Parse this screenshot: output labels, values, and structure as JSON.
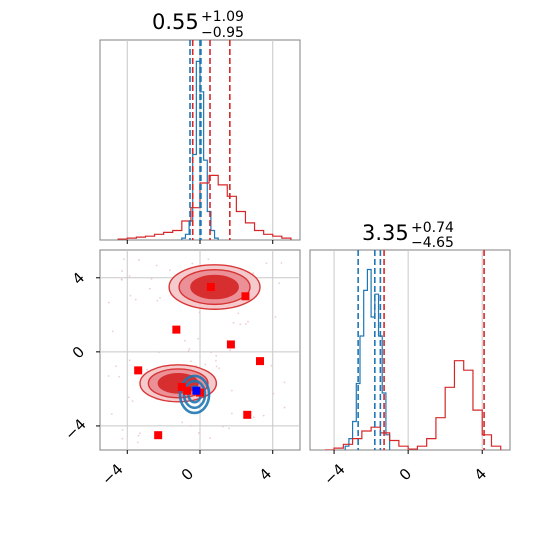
{
  "chart_data": [
    {
      "type": "histogram",
      "panel": "top-left",
      "title": {
        "median": "0.55",
        "upper": "+1.09",
        "lower": "−0.95"
      },
      "xlim": [
        -5.5,
        5.5
      ],
      "grid": true,
      "series": [
        {
          "color": "#1f77b4",
          "bin_edges": [
            -1.0,
            -0.8,
            -0.6,
            -0.4,
            -0.2,
            0.0,
            0.2,
            0.4,
            0.6,
            0.8,
            1.0
          ],
          "counts": [
            0.01,
            0.03,
            0.1,
            0.45,
            0.94,
            0.78,
            0.42,
            0.15,
            0.05,
            0.01
          ],
          "quantile_lines": [
            -0.55,
            0.0,
            0.05
          ]
        },
        {
          "color": "#d62728",
          "bin_edges": [
            -4.5,
            -4.0,
            -3.5,
            -3.0,
            -2.5,
            -2.0,
            -1.5,
            -1.0,
            -0.5,
            0.0,
            0.5,
            1.0,
            1.5,
            2.0,
            2.5,
            3.0,
            3.5,
            4.0,
            4.5,
            5.0
          ],
          "counts": [
            0.005,
            0.01,
            0.015,
            0.02,
            0.03,
            0.04,
            0.05,
            0.1,
            0.17,
            0.3,
            0.34,
            0.29,
            0.23,
            0.15,
            0.09,
            0.05,
            0.03,
            0.02,
            0.01
          ],
          "quantile_lines": [
            -0.4,
            0.55,
            1.64
          ]
        }
      ]
    },
    {
      "type": "scatter",
      "panel": "bottom-left",
      "xlim": [
        -5.5,
        5.5
      ],
      "ylim": [
        -5.3,
        5.5
      ],
      "xticks": [
        "−4",
        "0",
        "4"
      ],
      "yticks": [
        "4",
        "0",
        "−4"
      ],
      "grid": true,
      "red_contour_blobs": [
        {
          "cx": 0.8,
          "cy": 3.5,
          "rx": 2.5,
          "ry": 1.2
        },
        {
          "cx": -1.2,
          "cy": -1.7,
          "rx": 2.1,
          "ry": 1.0
        }
      ],
      "blue_contour_blob": {
        "cx": -0.3,
        "cy": -2.3,
        "rx": 0.8,
        "ry": 0.8
      },
      "red_points": [
        [
          0.6,
          3.5
        ],
        [
          2.5,
          3.0
        ],
        [
          -1.3,
          1.2
        ],
        [
          1.7,
          0.4
        ],
        [
          3.3,
          -0.5
        ],
        [
          -3.4,
          -1.0
        ],
        [
          -1.0,
          -1.9
        ],
        [
          -0.7,
          -2.1
        ],
        [
          0.0,
          -2.2
        ],
        [
          2.6,
          -3.4
        ],
        [
          -2.3,
          -4.5
        ]
      ],
      "blue_points": [
        [
          -0.2,
          -2.1
        ]
      ]
    },
    {
      "type": "histogram",
      "panel": "bottom-right",
      "title": {
        "median": "3.35",
        "upper": "+0.74",
        "lower": "−4.65"
      },
      "xlim": [
        -5.3,
        5.5
      ],
      "xticks": [
        "−4",
        "0",
        "4"
      ],
      "grid": true,
      "series": [
        {
          "color": "#1f77b4",
          "bin_edges": [
            -3.4,
            -3.2,
            -3.0,
            -2.8,
            -2.6,
            -2.4,
            -2.2,
            -2.0,
            -1.8,
            -1.6,
            -1.4,
            -1.2,
            -1.0
          ],
          "counts": [
            0.02,
            0.06,
            0.15,
            0.35,
            0.6,
            0.84,
            0.95,
            0.7,
            0.82,
            0.6,
            0.3,
            0.08
          ],
          "quantile_lines": [
            -2.7,
            -1.8,
            -1.5
          ]
        },
        {
          "color": "#d62728",
          "bin_edges": [
            -4.5,
            -4.0,
            -3.5,
            -3.0,
            -2.5,
            -2.0,
            -1.5,
            -1.0,
            -0.5,
            0.0,
            0.5,
            1.0,
            1.5,
            2.0,
            2.5,
            3.0,
            3.5,
            4.0,
            4.5,
            5.0
          ],
          "counts": [
            0.0,
            0.01,
            0.03,
            0.06,
            0.1,
            0.12,
            0.09,
            0.05,
            0.02,
            0.005,
            0.02,
            0.06,
            0.17,
            0.33,
            0.47,
            0.42,
            0.21,
            0.08,
            0.02
          ],
          "quantile_lines": [
            -1.3,
            4.1
          ]
        }
      ]
    }
  ],
  "colors": {
    "blue": "#1f77b4",
    "red": "#d62728",
    "grid": "#c8c8c8",
    "axis": "#808080"
  }
}
